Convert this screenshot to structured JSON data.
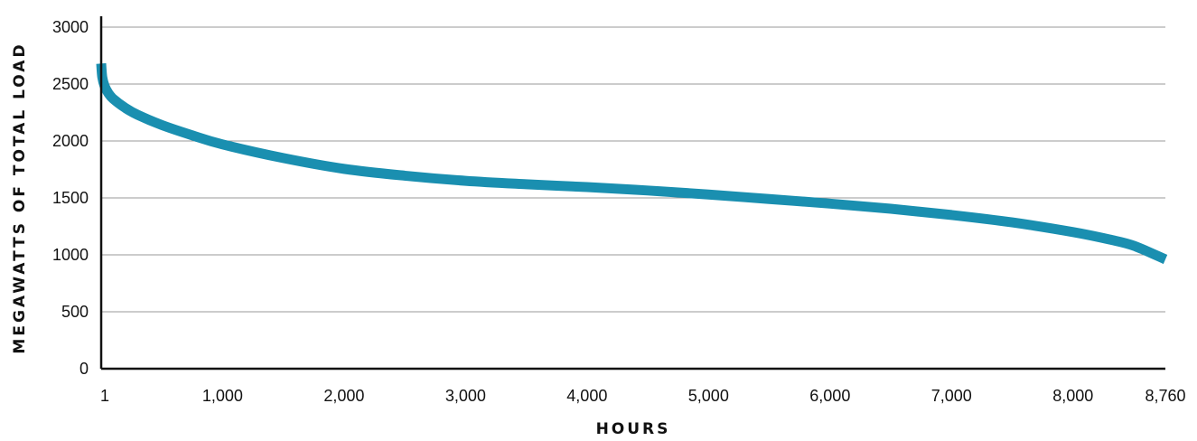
{
  "chart_data": {
    "type": "line",
    "xlabel": "HOURS",
    "ylabel": "MEGAWATTS OF TOTAL LOAD",
    "xlim": [
      1,
      8760
    ],
    "ylim": [
      0,
      3000
    ],
    "x_ticks": [
      {
        "value": 1,
        "label": "1"
      },
      {
        "value": 1000,
        "label": "1,000"
      },
      {
        "value": 2000,
        "label": "2,000"
      },
      {
        "value": 3000,
        "label": "3,000"
      },
      {
        "value": 4000,
        "label": "4,000"
      },
      {
        "value": 5000,
        "label": "5,000"
      },
      {
        "value": 6000,
        "label": "6,000"
      },
      {
        "value": 7000,
        "label": "7,000"
      },
      {
        "value": 8000,
        "label": "8,000"
      },
      {
        "value": 8760,
        "label": "8,760"
      }
    ],
    "y_ticks": [
      {
        "value": 0,
        "label": "0"
      },
      {
        "value": 500,
        "label": "500"
      },
      {
        "value": 1000,
        "label": "1000"
      },
      {
        "value": 1500,
        "label": "1500"
      },
      {
        "value": 2000,
        "label": "2000"
      },
      {
        "value": 2500,
        "label": "2500"
      },
      {
        "value": 3000,
        "label": "3000"
      }
    ],
    "grid": "horizontal",
    "legend": "none",
    "series": [
      {
        "color": "#1a8fb0",
        "x": [
          1,
          10,
          30,
          60,
          100,
          200,
          300,
          500,
          750,
          1000,
          1500,
          2000,
          2500,
          3000,
          3500,
          4000,
          4500,
          5000,
          5500,
          6000,
          6500,
          7000,
          7500,
          8000,
          8300,
          8500,
          8760
        ],
        "y": [
          2680,
          2560,
          2480,
          2420,
          2370,
          2290,
          2230,
          2140,
          2050,
          1970,
          1850,
          1755,
          1695,
          1650,
          1620,
          1595,
          1565,
          1530,
          1490,
          1450,
          1405,
          1350,
          1285,
          1200,
          1135,
          1080,
          960
        ]
      }
    ]
  }
}
